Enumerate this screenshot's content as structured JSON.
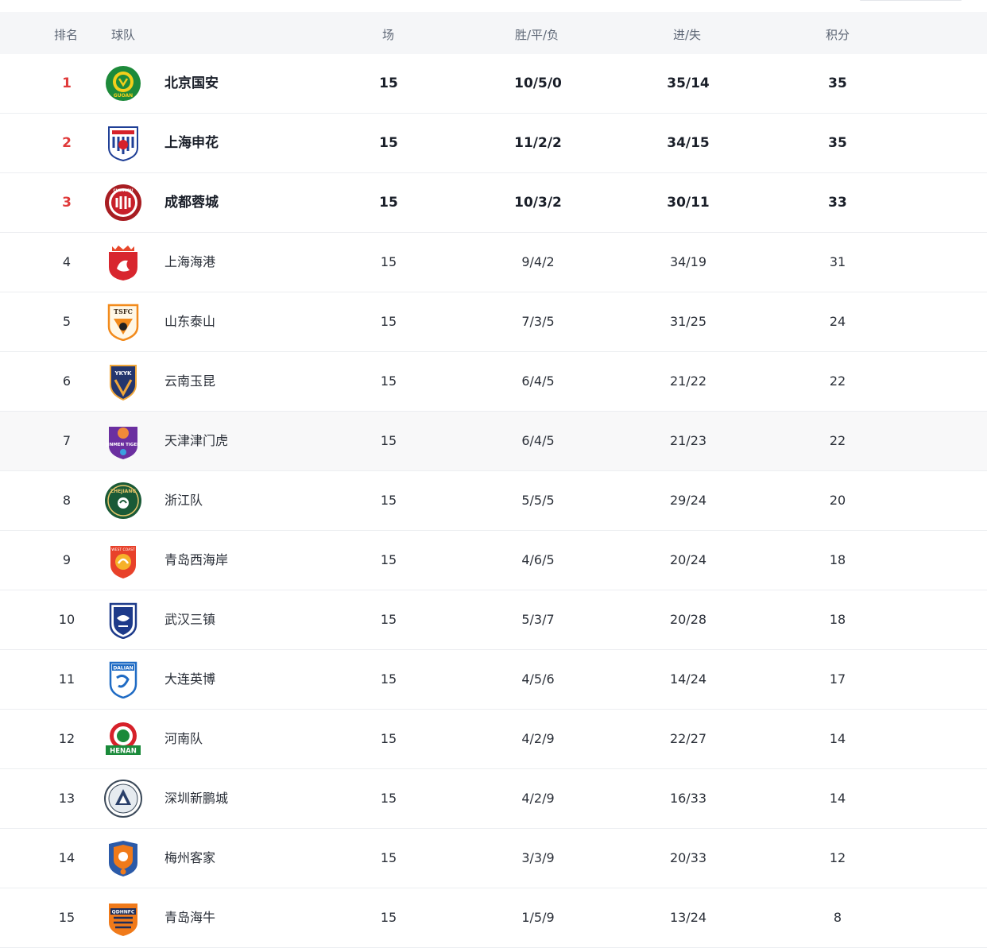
{
  "columns": {
    "rank": "排名",
    "team": "球队",
    "played": "场",
    "wdl": "胜/平/负",
    "goals": "进/失",
    "points": "积分"
  },
  "accent_rank_color": "#e03a3a",
  "rows": [
    {
      "rank": "1",
      "team": "北京国安",
      "played": "15",
      "wdl": "10/5/0",
      "goals": "35/14",
      "points": "35",
      "logo_text": "GUOAN",
      "logo_icon": "beijing-guoan-logo"
    },
    {
      "rank": "2",
      "team": "上海申花",
      "played": "15",
      "wdl": "11/2/2",
      "goals": "34/15",
      "points": "35",
      "logo_text": "",
      "logo_icon": "shanghai-shenhua-logo"
    },
    {
      "rank": "3",
      "team": "成都蓉城",
      "played": "15",
      "wdl": "10/3/2",
      "goals": "30/11",
      "points": "33",
      "logo_text": "CHENGDU",
      "logo_icon": "chengdu-rongcheng-logo"
    },
    {
      "rank": "4",
      "team": "上海海港",
      "played": "15",
      "wdl": "9/4/2",
      "goals": "34/19",
      "points": "31",
      "logo_text": "",
      "logo_icon": "shanghai-port-logo"
    },
    {
      "rank": "5",
      "team": "山东泰山",
      "played": "15",
      "wdl": "7/3/5",
      "goals": "31/25",
      "points": "24",
      "logo_text": "TSFC",
      "logo_icon": "shandong-taishan-logo"
    },
    {
      "rank": "6",
      "team": "云南玉昆",
      "played": "15",
      "wdl": "6/4/5",
      "goals": "21/22",
      "points": "22",
      "logo_text": "YKYK",
      "logo_icon": "yunnan-yukun-logo"
    },
    {
      "rank": "7",
      "team": "天津津门虎",
      "played": "15",
      "wdl": "6/4/5",
      "goals": "21/23",
      "points": "22",
      "logo_text": "JINMEN TIGER",
      "logo_icon": "tianjin-jinmen-tiger-logo"
    },
    {
      "rank": "8",
      "team": "浙江队",
      "played": "15",
      "wdl": "5/5/5",
      "goals": "29/24",
      "points": "20",
      "logo_text": "ZHEJIANG",
      "logo_icon": "zhejiang-logo"
    },
    {
      "rank": "9",
      "team": "青岛西海岸",
      "played": "15",
      "wdl": "4/6/5",
      "goals": "20/24",
      "points": "18",
      "logo_text": "WEST COAST",
      "logo_icon": "qingdao-west-coast-logo"
    },
    {
      "rank": "10",
      "team": "武汉三镇",
      "played": "15",
      "wdl": "5/3/7",
      "goals": "20/28",
      "points": "18",
      "logo_text": "",
      "logo_icon": "wuhan-three-towns-logo"
    },
    {
      "rank": "11",
      "team": "大连英博",
      "played": "15",
      "wdl": "4/5/6",
      "goals": "14/24",
      "points": "17",
      "logo_text": "DALIAN",
      "logo_icon": "dalian-yingbo-logo"
    },
    {
      "rank": "12",
      "team": "河南队",
      "played": "15",
      "wdl": "4/2/9",
      "goals": "22/27",
      "points": "14",
      "logo_text": "HENAN",
      "logo_icon": "henan-logo"
    },
    {
      "rank": "13",
      "team": "深圳新鹏城",
      "played": "15",
      "wdl": "4/2/9",
      "goals": "16/33",
      "points": "14",
      "logo_text": "",
      "logo_icon": "shenzhen-peng-city-logo"
    },
    {
      "rank": "14",
      "team": "梅州客家",
      "played": "15",
      "wdl": "3/3/9",
      "goals": "20/33",
      "points": "12",
      "logo_text": "",
      "logo_icon": "meizhou-hakka-logo"
    },
    {
      "rank": "15",
      "team": "青岛海牛",
      "played": "15",
      "wdl": "1/5/9",
      "goals": "13/24",
      "points": "8",
      "logo_text": "QDHNFC",
      "logo_icon": "qingdao-hainiu-logo"
    }
  ]
}
